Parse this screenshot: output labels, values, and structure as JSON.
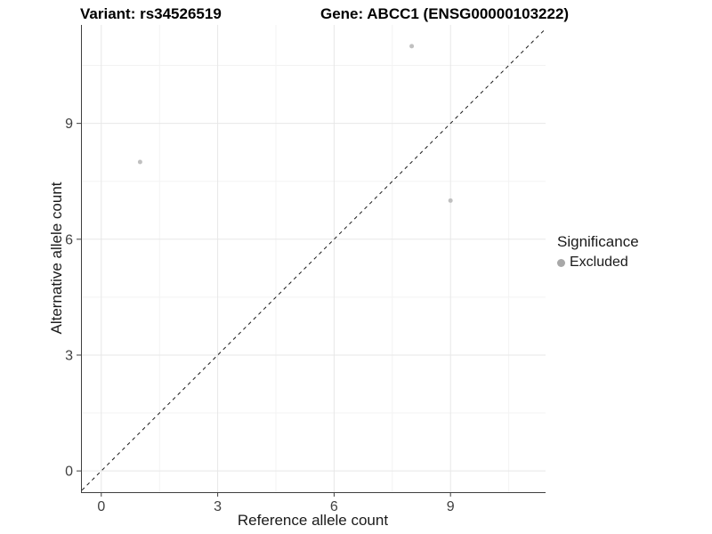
{
  "chart_data": {
    "type": "scatter",
    "title_left": "Variant: rs34526519",
    "title_right": "Gene: ABCC1 (ENSG00000103222)",
    "xlabel": "Reference allele count",
    "ylabel": "Alternative allele count",
    "xlim": [
      -0.5,
      11.45
    ],
    "ylim": [
      -0.55,
      11.55
    ],
    "x_ticks": [
      0,
      3,
      6,
      9
    ],
    "y_ticks": [
      0,
      3,
      6,
      9
    ],
    "x_minor_gridlines": [
      1.5,
      4.5,
      7.5,
      10.5
    ],
    "y_minor_gridlines": [
      1.5,
      4.5,
      7.5,
      10.5
    ],
    "grid": true,
    "points": [
      {
        "x": 1,
        "y": 8,
        "significance": "Excluded"
      },
      {
        "x": 8,
        "y": 11,
        "significance": "Excluded"
      },
      {
        "x": 9,
        "y": 7,
        "significance": "Excluded"
      }
    ],
    "identity_line": {
      "equation": "y = x",
      "style": "dashed",
      "color": "#1a1a1a"
    },
    "legend": {
      "title": "Significance",
      "position": "right",
      "items": [
        {
          "label": "Excluded",
          "color": "#a8a8a8"
        }
      ]
    },
    "colors": {
      "point": "#c0c0c0",
      "legend_point": "#a8a8a8",
      "grid_major": "#e7e7e7",
      "grid_minor": "#f3f3f3",
      "axis_line": "#3f3f3f",
      "tick_text": "#404040"
    }
  }
}
